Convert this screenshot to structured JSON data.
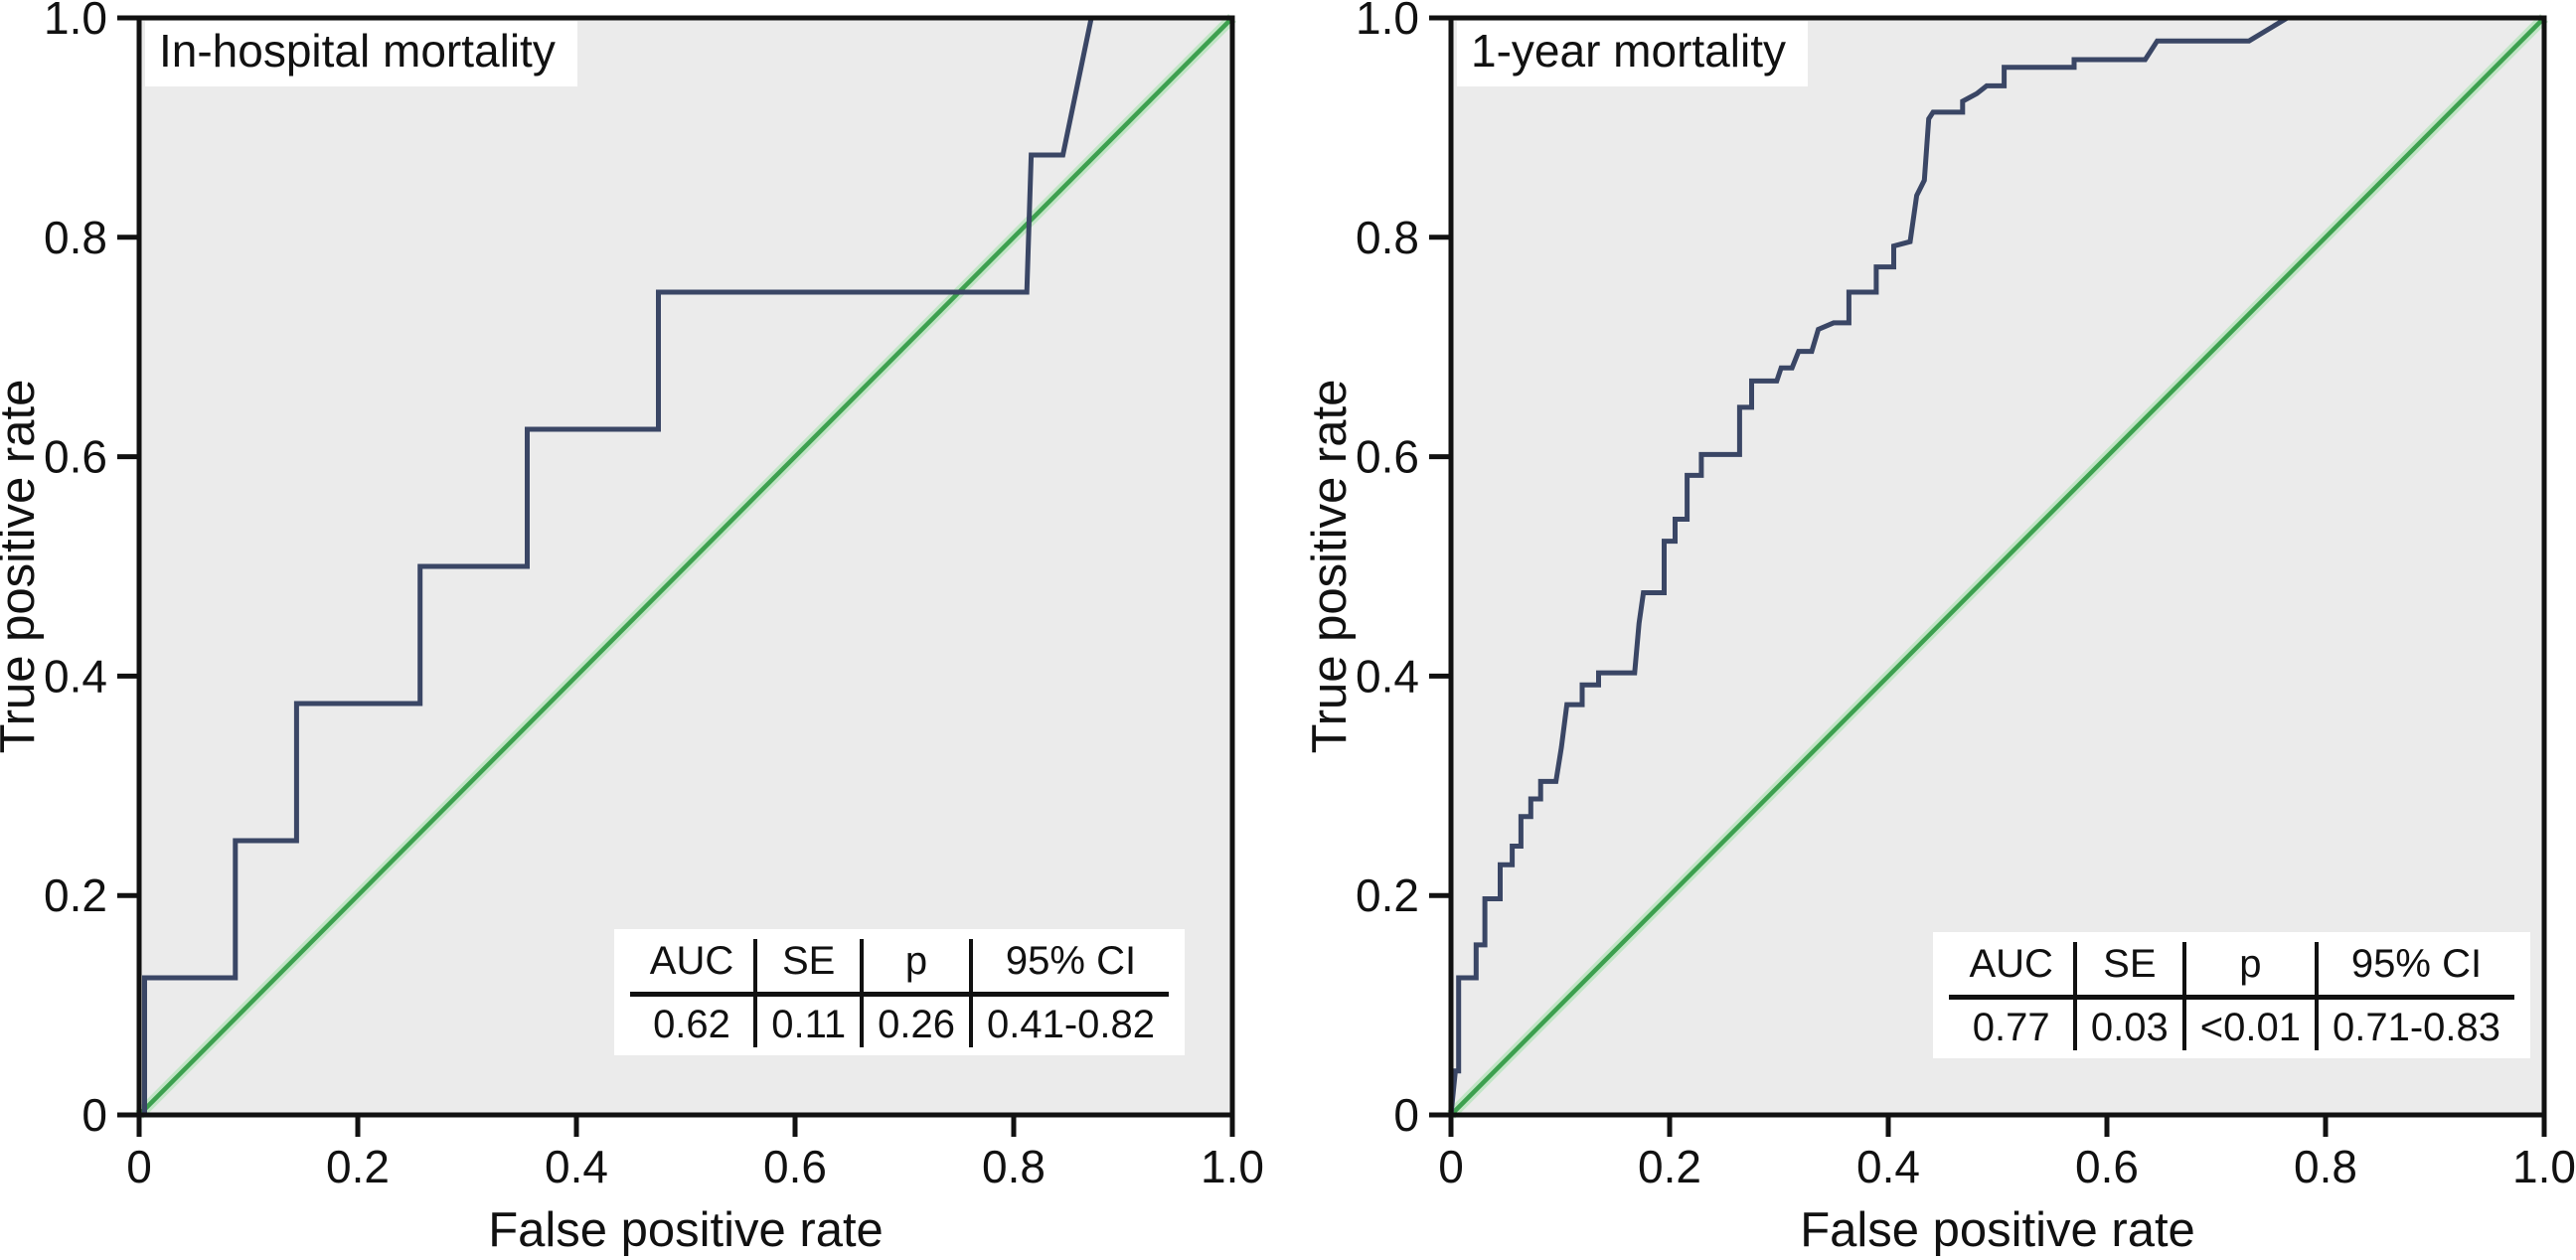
{
  "figure": {
    "background": "#ffffff",
    "plot_background": "#ebebeb",
    "frame_color": "#111111",
    "roc_color": "#3a4665",
    "reference_color": "#3da04f",
    "reference_halo": "#c2e5c6",
    "text_color": "#111111"
  },
  "chart_data": [
    {
      "type": "line",
      "title": "In-hospital mortality",
      "xlabel": "False positive rate",
      "ylabel": "True positive rate",
      "xlim": [
        0,
        1
      ],
      "ylim": [
        0,
        1
      ],
      "grid": false,
      "xticks": [
        "0",
        "0.2",
        "0.4",
        "0.6",
        "0.8",
        "1.0"
      ],
      "yticks": [
        "0",
        "0.2",
        "0.4",
        "0.6",
        "0.8",
        "1.0"
      ],
      "series": [
        {
          "name": "ROC curve",
          "color": "#3a4665",
          "points": [
            [
              0,
              0
            ],
            [
              0.005,
              0
            ],
            [
              0.005,
              0.125
            ],
            [
              0.088,
              0.125
            ],
            [
              0.088,
              0.25
            ],
            [
              0.144,
              0.25
            ],
            [
              0.144,
              0.375
            ],
            [
              0.257,
              0.375
            ],
            [
              0.257,
              0.5
            ],
            [
              0.355,
              0.5
            ],
            [
              0.355,
              0.625
            ],
            [
              0.475,
              0.625
            ],
            [
              0.475,
              0.75
            ],
            [
              0.812,
              0.75
            ],
            [
              0.816,
              0.875
            ],
            [
              0.845,
              0.875
            ],
            [
              0.871,
              1
            ],
            [
              1,
              1
            ]
          ]
        },
        {
          "name": "Reference diagonal",
          "color": "#3da04f",
          "points": [
            [
              0,
              0
            ],
            [
              1,
              1
            ]
          ]
        }
      ],
      "stats": {
        "headers": [
          "AUC",
          "SE",
          "p",
          "95% CI"
        ],
        "values": [
          "0.62",
          "0.11",
          "0.26",
          "0.41-0.82"
        ]
      }
    },
    {
      "type": "line",
      "title": "1-year mortality",
      "xlabel": "False positive rate",
      "ylabel": "True positive rate",
      "xlim": [
        0,
        1
      ],
      "ylim": [
        0,
        1
      ],
      "grid": false,
      "xticks": [
        "0",
        "0.2",
        "0.4",
        "0.6",
        "0.8",
        "1.0"
      ],
      "yticks": [
        "0",
        "0.2",
        "0.4",
        "0.6",
        "0.8",
        "1.0"
      ],
      "series": [
        {
          "name": "ROC curve",
          "color": "#3a4665",
          "points": [
            [
              0,
              0
            ],
            [
              0.004,
              0.04
            ],
            [
              0.007,
              0.04
            ],
            [
              0.007,
              0.125
            ],
            [
              0.023,
              0.125
            ],
            [
              0.023,
              0.155
            ],
            [
              0.031,
              0.155
            ],
            [
              0.031,
              0.197
            ],
            [
              0.045,
              0.197
            ],
            [
              0.045,
              0.228
            ],
            [
              0.056,
              0.228
            ],
            [
              0.056,
              0.245
            ],
            [
              0.064,
              0.245
            ],
            [
              0.064,
              0.272
            ],
            [
              0.073,
              0.272
            ],
            [
              0.073,
              0.288
            ],
            [
              0.082,
              0.288
            ],
            [
              0.082,
              0.304
            ],
            [
              0.096,
              0.304
            ],
            [
              0.101,
              0.335
            ],
            [
              0.106,
              0.374
            ],
            [
              0.12,
              0.374
            ],
            [
              0.12,
              0.392
            ],
            [
              0.135,
              0.392
            ],
            [
              0.135,
              0.403
            ],
            [
              0.168,
              0.403
            ],
            [
              0.172,
              0.448
            ],
            [
              0.176,
              0.476
            ],
            [
              0.195,
              0.476
            ],
            [
              0.195,
              0.523
            ],
            [
              0.205,
              0.523
            ],
            [
              0.205,
              0.543
            ],
            [
              0.216,
              0.543
            ],
            [
              0.216,
              0.583
            ],
            [
              0.229,
              0.583
            ],
            [
              0.229,
              0.602
            ],
            [
              0.264,
              0.602
            ],
            [
              0.264,
              0.645
            ],
            [
              0.275,
              0.645
            ],
            [
              0.275,
              0.669
            ],
            [
              0.298,
              0.669
            ],
            [
              0.302,
              0.681
            ],
            [
              0.312,
              0.681
            ],
            [
              0.318,
              0.696
            ],
            [
              0.33,
              0.696
            ],
            [
              0.336,
              0.716
            ],
            [
              0.35,
              0.722
            ],
            [
              0.364,
              0.722
            ],
            [
              0.364,
              0.75
            ],
            [
              0.389,
              0.75
            ],
            [
              0.389,
              0.773
            ],
            [
              0.405,
              0.773
            ],
            [
              0.405,
              0.792
            ],
            [
              0.42,
              0.796
            ],
            [
              0.426,
              0.838
            ],
            [
              0.433,
              0.852
            ],
            [
              0.437,
              0.908
            ],
            [
              0.441,
              0.914
            ],
            [
              0.468,
              0.914
            ],
            [
              0.468,
              0.924
            ],
            [
              0.481,
              0.931
            ],
            [
              0.49,
              0.938
            ],
            [
              0.506,
              0.938
            ],
            [
              0.506,
              0.955
            ],
            [
              0.57,
              0.955
            ],
            [
              0.57,
              0.962
            ],
            [
              0.635,
              0.962
            ],
            [
              0.646,
              0.979
            ],
            [
              0.73,
              0.979
            ],
            [
              0.765,
              1
            ],
            [
              1,
              1
            ]
          ]
        },
        {
          "name": "Reference diagonal",
          "color": "#3da04f",
          "points": [
            [
              0,
              0
            ],
            [
              1,
              1
            ]
          ]
        }
      ],
      "stats": {
        "headers": [
          "AUC",
          "SE",
          "p",
          "95% CI"
        ],
        "values": [
          "0.77",
          "0.03",
          "<0.01",
          "0.71-0.83"
        ]
      }
    }
  ]
}
